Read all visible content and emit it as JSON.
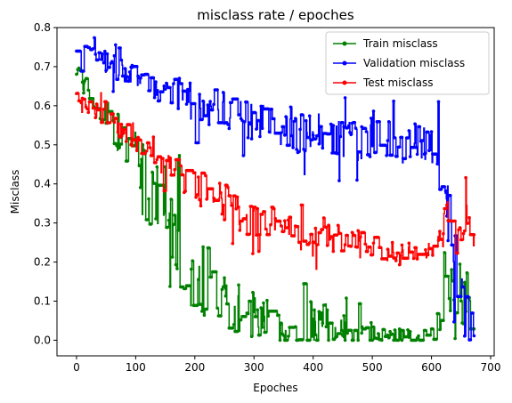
{
  "chart_data": {
    "type": "line",
    "title": "misclass rate / epoches",
    "xlabel": "Epoches",
    "ylabel": "Misclass",
    "xlim": [
      -33,
      706
    ],
    "ylim": [
      -0.04,
      0.8
    ],
    "xticks": [
      0,
      100,
      200,
      300,
      400,
      500,
      600,
      700
    ],
    "yticks": [
      0.0,
      0.1,
      0.2,
      0.3,
      0.4,
      0.5,
      0.6,
      0.7,
      0.8
    ],
    "xtick_labels": [
      "0",
      "100",
      "200",
      "300",
      "400",
      "500",
      "600",
      "700"
    ],
    "ytick_labels": [
      "0.0",
      "0.1",
      "0.2",
      "0.3",
      "0.4",
      "0.5",
      "0.6",
      "0.7",
      "0.8"
    ],
    "grid": false,
    "legend_position": "top-right",
    "marker": "circle",
    "n_epochs": 674,
    "series": [
      {
        "name": "Train misclass",
        "color": "#008000",
        "x": [
          0,
          25,
          50,
          75,
          100,
          125,
          150,
          175,
          200,
          225,
          250,
          275,
          300,
          325,
          350,
          375,
          400,
          425,
          450,
          475,
          500,
          525,
          550,
          575,
          600,
          610,
          620,
          630,
          640,
          650,
          660,
          673
        ],
        "y": [
          0.7,
          0.61,
          0.57,
          0.52,
          0.45,
          0.36,
          0.28,
          0.2,
          0.17,
          0.13,
          0.1,
          0.08,
          0.06,
          0.05,
          0.045,
          0.035,
          0.03,
          0.04,
          0.03,
          0.02,
          0.015,
          0.01,
          0.01,
          0.01,
          0.01,
          0.03,
          0.15,
          0.1,
          0.08,
          0.1,
          0.12,
          0.01
        ],
        "noise_amplitude": [
          0.02,
          0.03,
          0.05,
          0.06,
          0.09,
          0.12,
          0.12,
          0.12,
          0.1,
          0.1,
          0.08,
          0.07,
          0.06,
          0.05,
          0.05,
          0.05,
          0.05,
          0.06,
          0.04,
          0.03,
          0.03,
          0.02,
          0.02,
          0.02,
          0.02,
          0.06,
          0.1,
          0.1,
          0.1,
          0.1,
          0.1,
          0.02
        ]
      },
      {
        "name": "Validation misclass",
        "color": "#0000ff",
        "x": [
          0,
          25,
          50,
          75,
          100,
          125,
          150,
          175,
          200,
          225,
          250,
          275,
          300,
          325,
          350,
          375,
          400,
          425,
          450,
          475,
          500,
          525,
          550,
          575,
          600,
          610,
          620,
          630,
          640,
          650,
          660,
          673
        ],
        "y": [
          0.74,
          0.73,
          0.71,
          0.69,
          0.67,
          0.65,
          0.64,
          0.62,
          0.61,
          0.6,
          0.59,
          0.58,
          0.56,
          0.55,
          0.54,
          0.53,
          0.53,
          0.53,
          0.52,
          0.51,
          0.51,
          0.51,
          0.51,
          0.51,
          0.5,
          0.5,
          0.35,
          0.25,
          0.12,
          0.08,
          0.07,
          0.03
        ],
        "noise_amplitude": [
          0.02,
          0.02,
          0.03,
          0.03,
          0.03,
          0.03,
          0.04,
          0.04,
          0.05,
          0.05,
          0.05,
          0.05,
          0.05,
          0.05,
          0.05,
          0.05,
          0.05,
          0.05,
          0.05,
          0.05,
          0.05,
          0.05,
          0.05,
          0.05,
          0.05,
          0.06,
          0.12,
          0.12,
          0.1,
          0.1,
          0.08,
          0.04
        ]
      },
      {
        "name": "Test misclass",
        "color": "#ff0000",
        "x": [
          0,
          25,
          50,
          75,
          100,
          125,
          150,
          175,
          200,
          225,
          250,
          275,
          300,
          325,
          350,
          375,
          400,
          425,
          450,
          475,
          500,
          525,
          550,
          575,
          600,
          610,
          620,
          630,
          640,
          650,
          660,
          673
        ],
        "y": [
          0.62,
          0.6,
          0.57,
          0.54,
          0.52,
          0.49,
          0.46,
          0.42,
          0.4,
          0.38,
          0.35,
          0.33,
          0.31,
          0.3,
          0.29,
          0.28,
          0.28,
          0.27,
          0.26,
          0.25,
          0.24,
          0.23,
          0.22,
          0.22,
          0.22,
          0.24,
          0.3,
          0.28,
          0.24,
          0.26,
          0.3,
          0.2
        ],
        "noise_amplitude": [
          0.02,
          0.02,
          0.03,
          0.03,
          0.04,
          0.04,
          0.04,
          0.04,
          0.05,
          0.05,
          0.05,
          0.05,
          0.05,
          0.05,
          0.04,
          0.04,
          0.04,
          0.04,
          0.04,
          0.04,
          0.03,
          0.03,
          0.03,
          0.03,
          0.03,
          0.04,
          0.08,
          0.08,
          0.06,
          0.06,
          0.06,
          0.05
        ]
      }
    ]
  }
}
